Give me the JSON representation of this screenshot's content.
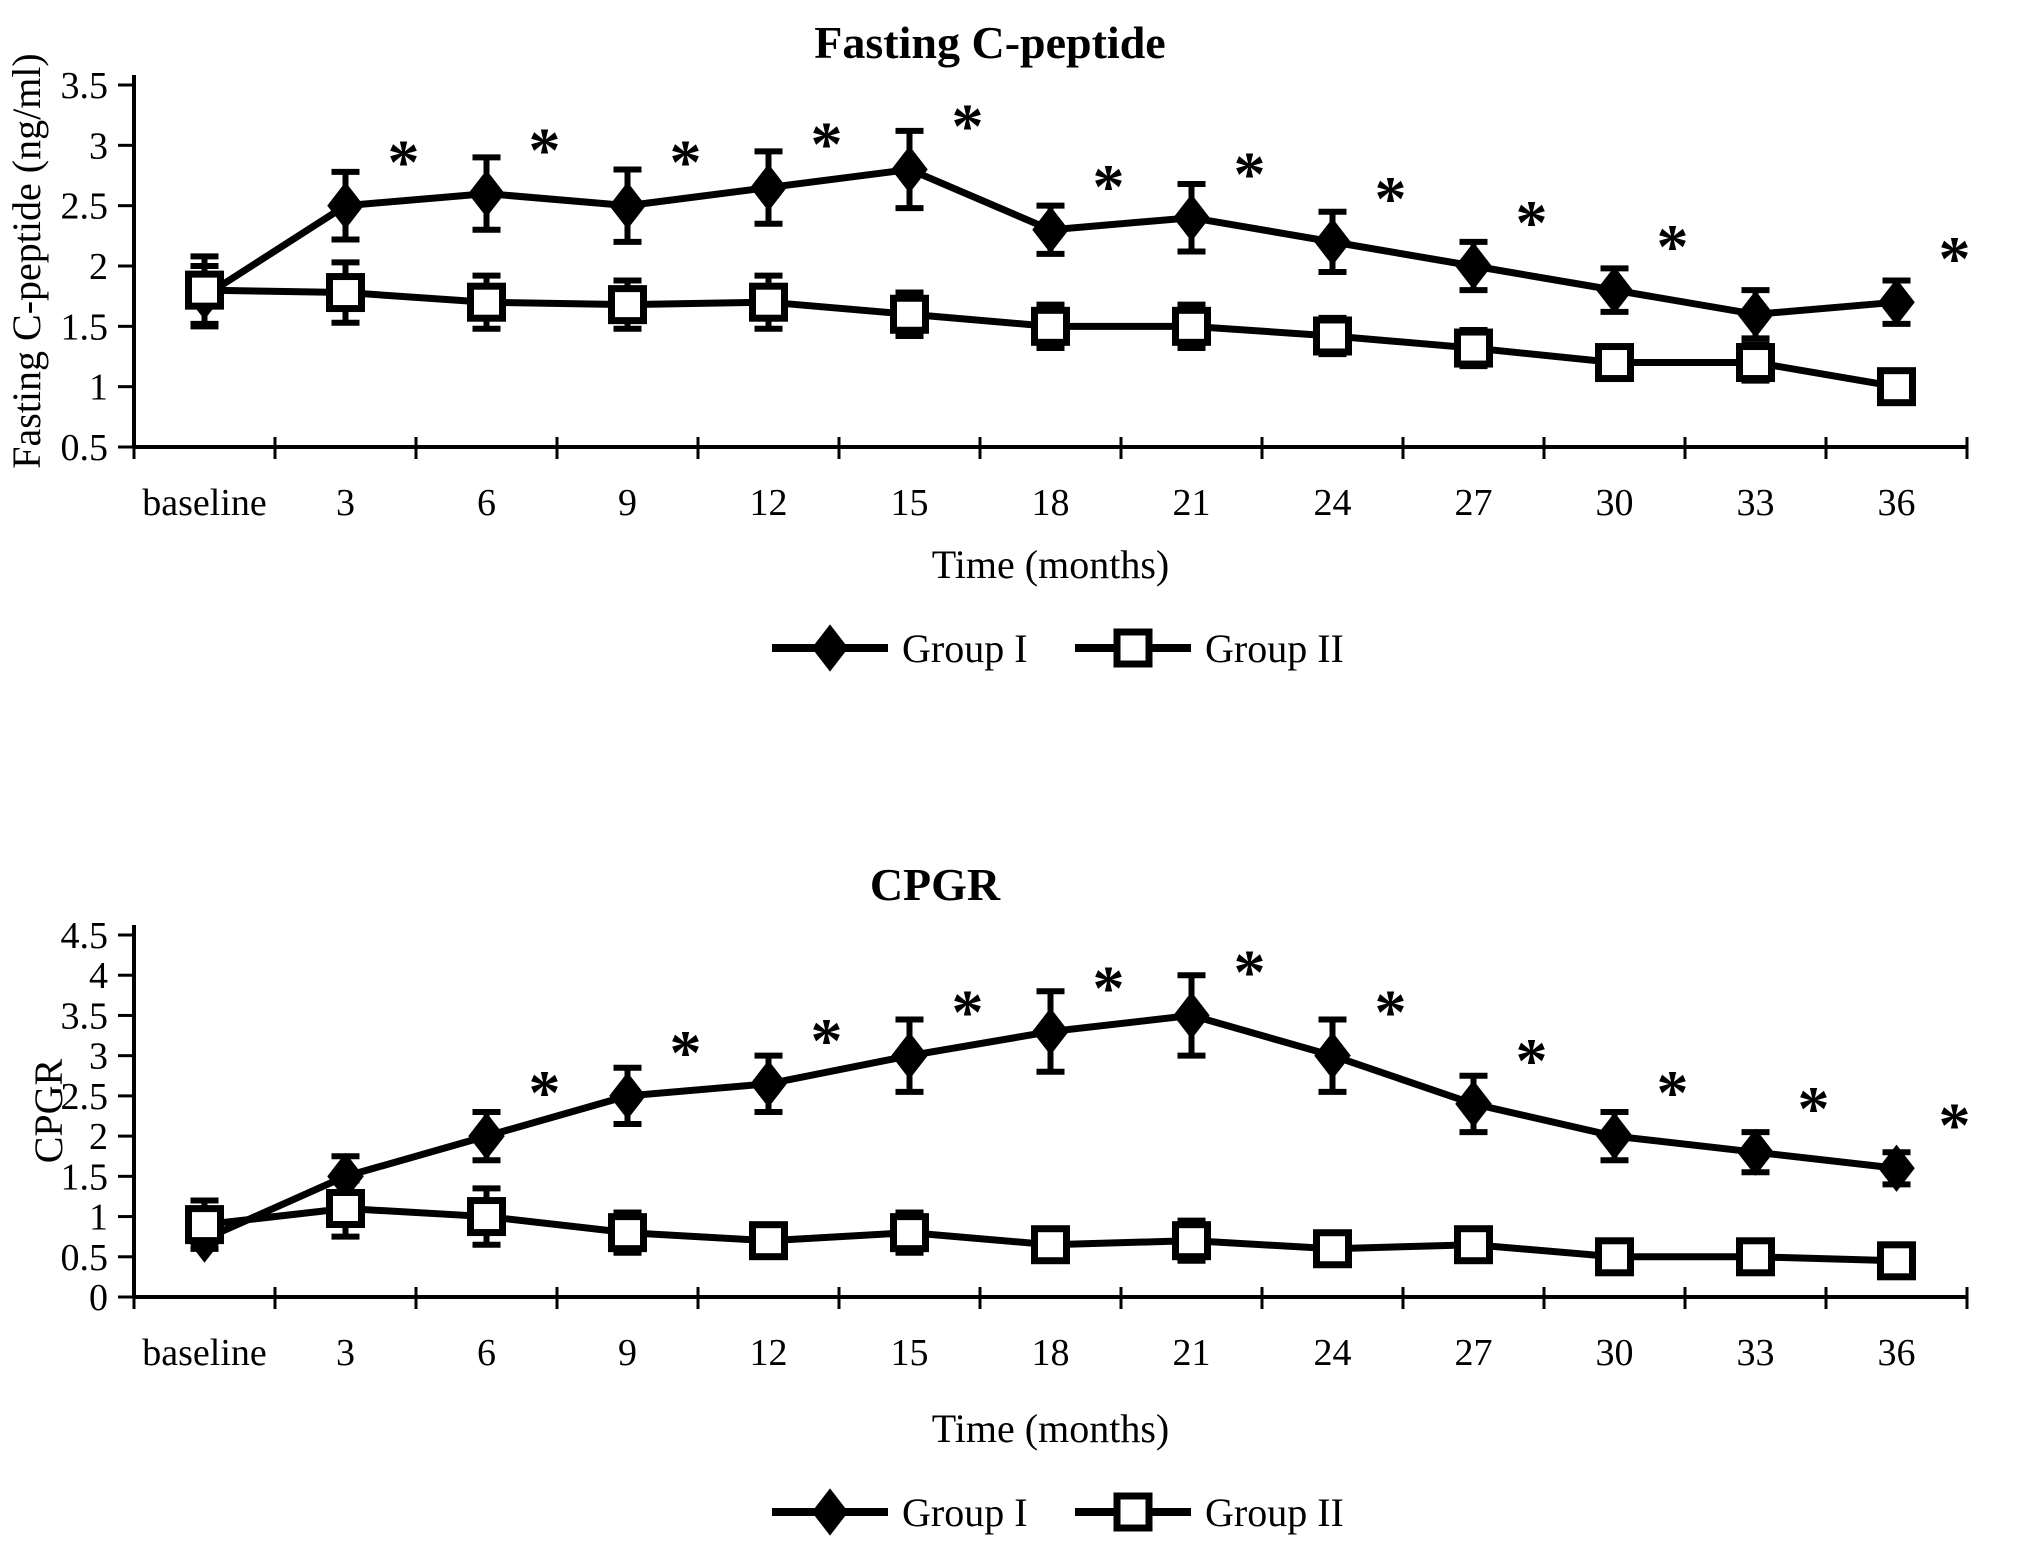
{
  "figure": {
    "background": "#ffffff",
    "ink": "#000000",
    "significance_marker": "*"
  },
  "chart_data": [
    {
      "type": "line",
      "title": "Fasting C-peptide",
      "ylabel": "Fasting C-peptide (ng/ml)",
      "xlabel": "Time (months)",
      "categories": [
        "baseline",
        "3",
        "6",
        "9",
        "12",
        "15",
        "18",
        "21",
        "24",
        "27",
        "30",
        "33",
        "36"
      ],
      "ylim": [
        0.5,
        3.5
      ],
      "ytick_labels": [
        "0.5",
        "1",
        "1.5",
        "2",
        "2.5",
        "3",
        "3.5"
      ],
      "grid": false,
      "legend_position": "below",
      "series": [
        {
          "name": "Group I",
          "marker": "filled-diamond",
          "values": [
            1.75,
            2.5,
            2.6,
            2.5,
            2.65,
            2.8,
            2.3,
            2.4,
            2.2,
            2.0,
            1.8,
            1.6,
            1.7
          ],
          "errors": [
            0.25,
            0.28,
            0.3,
            0.3,
            0.3,
            0.32,
            0.2,
            0.28,
            0.25,
            0.2,
            0.18,
            0.2,
            0.18
          ],
          "significant_at": [
            "3",
            "6",
            "9",
            "12",
            "15",
            "18",
            "21",
            "24",
            "27",
            "30",
            "36"
          ]
        },
        {
          "name": "Group II",
          "marker": "open-square",
          "values": [
            1.8,
            1.78,
            1.7,
            1.68,
            1.7,
            1.6,
            1.5,
            1.5,
            1.42,
            1.32,
            1.2,
            1.2,
            1.0
          ],
          "errors": [
            0.28,
            0.25,
            0.22,
            0.2,
            0.22,
            0.18,
            0.18,
            0.18,
            0.15,
            0.15,
            0.12,
            0.15,
            0.12
          ],
          "significant_at": []
        }
      ]
    },
    {
      "type": "line",
      "title": "CPGR",
      "ylabel": "CPGR",
      "xlabel": "Time (months)",
      "categories": [
        "baseline",
        "3",
        "6",
        "9",
        "12",
        "15",
        "18",
        "21",
        "24",
        "27",
        "30",
        "33",
        "36"
      ],
      "ylim": [
        0,
        4.5
      ],
      "ytick_labels": [
        "0",
        "0.5",
        "1",
        "1.5",
        "2",
        "2.5",
        "3",
        "3.5",
        "4",
        "4.5"
      ],
      "grid": false,
      "legend_position": "below",
      "series": [
        {
          "name": "Group I",
          "marker": "filled-diamond",
          "values": [
            0.72,
            1.5,
            2.0,
            2.5,
            2.65,
            3.0,
            3.3,
            3.5,
            3.0,
            2.4,
            2.0,
            1.8,
            1.6
          ],
          "errors": [
            0.12,
            0.25,
            0.3,
            0.35,
            0.35,
            0.45,
            0.5,
            0.5,
            0.45,
            0.35,
            0.3,
            0.25,
            0.2
          ],
          "significant_at": [
            "6",
            "9",
            "12",
            "15",
            "18",
            "21",
            "24",
            "27",
            "30",
            "33",
            "36"
          ]
        },
        {
          "name": "Group II",
          "marker": "open-square",
          "values": [
            0.9,
            1.1,
            1.0,
            0.8,
            0.7,
            0.8,
            0.65,
            0.7,
            0.6,
            0.65,
            0.5,
            0.5,
            0.45
          ],
          "errors": [
            0.3,
            0.35,
            0.35,
            0.25,
            0.2,
            0.25,
            0.2,
            0.25,
            0.1,
            0.15,
            0.1,
            0.1,
            0.1
          ],
          "significant_at": []
        }
      ]
    }
  ]
}
